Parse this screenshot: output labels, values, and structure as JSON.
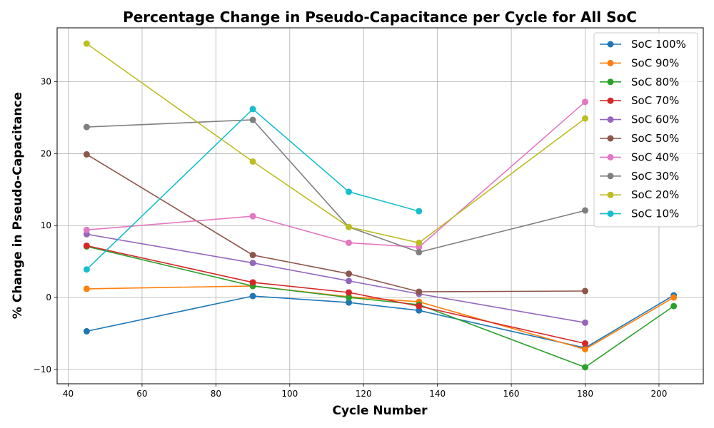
{
  "chart_data": {
    "type": "line",
    "title": "Percentage Change in Pseudo-Capacitance per Cycle for All SoC",
    "xlabel": "Cycle Number",
    "ylabel": "% Change in Pseudo-Capacitance",
    "xlim": [
      37,
      212
    ],
    "ylim": [
      -12,
      37.5
    ],
    "xticks": [
      40,
      60,
      80,
      100,
      120,
      140,
      160,
      180,
      200
    ],
    "yticks": [
      -10,
      0,
      10,
      20,
      30
    ],
    "xtick_labels": [
      "40",
      "60",
      "80",
      "100",
      "120",
      "140",
      "160",
      "180",
      "200"
    ],
    "ytick_labels": [
      "−10",
      "0",
      "10",
      "20",
      "30"
    ],
    "grid": true,
    "legend_position": "top-right",
    "series": [
      {
        "name": "SoC 100%",
        "color": "#1f77b4",
        "x": [
          45,
          90,
          116,
          135,
          180,
          204
        ],
        "y": [
          -4.7,
          0.2,
          -0.7,
          -1.8,
          -7.0,
          0.3
        ]
      },
      {
        "name": "SoC 90%",
        "color": "#ff7f0e",
        "x": [
          45,
          90,
          116,
          135,
          180,
          204
        ],
        "y": [
          1.2,
          1.6,
          0.1,
          -0.6,
          -7.2,
          0.0
        ]
      },
      {
        "name": "SoC 80%",
        "color": "#2ca02c",
        "x": [
          45,
          90,
          116,
          135,
          180,
          204
        ],
        "y": [
          7.1,
          1.6,
          0.0,
          -1.0,
          -9.7,
          -1.2
        ]
      },
      {
        "name": "SoC 70%",
        "color": "#d62728",
        "x": [
          45,
          90,
          116,
          135,
          180
        ],
        "y": [
          7.2,
          2.1,
          0.7,
          -1.2,
          -6.4
        ]
      },
      {
        "name": "SoC 60%",
        "color": "#9467bd",
        "x": [
          45,
          90,
          116,
          135,
          180
        ],
        "y": [
          8.8,
          4.8,
          2.3,
          0.5,
          -3.5
        ]
      },
      {
        "name": "SoC 50%",
        "color": "#8c564b",
        "x": [
          45,
          90,
          116,
          135,
          180
        ],
        "y": [
          19.9,
          5.9,
          3.3,
          0.8,
          0.9
        ]
      },
      {
        "name": "SoC 40%",
        "color": "#e377c2",
        "x": [
          45,
          90,
          116,
          135,
          180
        ],
        "y": [
          9.4,
          11.3,
          7.6,
          7.0,
          27.2
        ]
      },
      {
        "name": "SoC 30%",
        "color": "#7f7f7f",
        "x": [
          45,
          90,
          116,
          135,
          180
        ],
        "y": [
          23.7,
          24.7,
          9.8,
          6.3,
          12.1
        ]
      },
      {
        "name": "SoC 20%",
        "color": "#bcbd22",
        "x": [
          45,
          90,
          116,
          135,
          180
        ],
        "y": [
          35.3,
          18.9,
          9.8,
          7.6,
          24.9
        ]
      },
      {
        "name": "SoC 10%",
        "color": "#17becf",
        "x": [
          45,
          90,
          116,
          135
        ],
        "y": [
          3.9,
          26.2,
          14.7,
          12.0
        ]
      }
    ]
  }
}
